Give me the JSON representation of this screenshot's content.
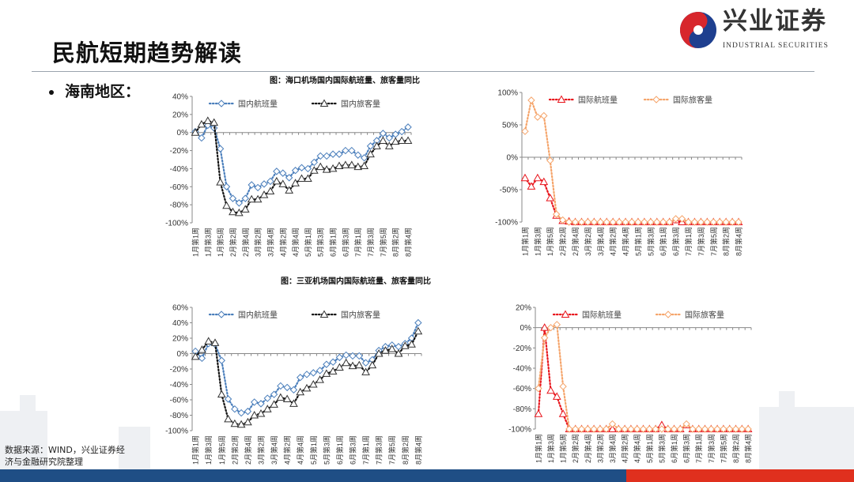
{
  "page": {
    "title": "民航短期趋势解读",
    "bullet": "海南地区：",
    "chart_title_1": "图：海口机场国内国际航班量、旅客量同比",
    "chart_title_2": "图：三亚机场国内国际航班量、旅客量同比",
    "source": "数据来源：WIND，兴业证券经济与金融研究院整理"
  },
  "logo": {
    "cn": "兴业证券",
    "en": "INDUSTRIAL SECURITIES"
  },
  "colors": {
    "blue": "#4a7ebb",
    "black": "#111111",
    "red": "#e8141b",
    "orange": "#f5a46a",
    "bar_blue": "#1f4e85",
    "bar_red": "#e0301e"
  },
  "chart_data": [
    {
      "type": "line",
      "title": "海口机场国内航班量、旅客量同比",
      "categories": [
        "1月第1周",
        "1月第2周",
        "1月第3周",
        "1月第4周",
        "1月第5周",
        "2月第1周",
        "2月第2周",
        "2月第3周",
        "2月第4周",
        "3月第1周",
        "3月第2周",
        "3月第3周",
        "3月第4周",
        "4月第1周",
        "4月第2周",
        "4月第3周",
        "4月第4周",
        "4月第5周",
        "5月第1周",
        "5月第2周",
        "5月第3周",
        "5月第4周",
        "6月第1周",
        "6月第2周",
        "6月第3周",
        "6月第4周",
        "7月第1周",
        "7月第2周",
        "7月第3周",
        "7月第4周",
        "7月第5周",
        "8月第1周",
        "8月第2周",
        "8月第3周",
        "8月第4周"
      ],
      "ylim": [
        -100,
        40
      ],
      "yticks": [
        -100,
        -80,
        -60,
        -40,
        -20,
        0,
        20,
        40
      ],
      "yunit": "%",
      "legend": "top",
      "series": [
        {
          "name": "国内航班量",
          "color": "#4a7ebb",
          "marker": "diamond",
          "values": [
            1,
            -6,
            8,
            5,
            -18,
            -60,
            -73,
            -78,
            -73,
            -58,
            -61,
            -57,
            -54,
            -43,
            -45,
            -50,
            -42,
            -39,
            -40,
            -33,
            -26,
            -26,
            -24,
            -24,
            -20,
            -20,
            -25,
            -28,
            -15,
            -9,
            -1,
            -6,
            -2,
            1,
            6
          ]
        },
        {
          "name": "国内旅客量",
          "color": "#111111",
          "marker": "triangle",
          "values": [
            0,
            9,
            13,
            11,
            -55,
            -81,
            -88,
            -89,
            -85,
            -74,
            -74,
            -69,
            -65,
            -54,
            -57,
            -64,
            -56,
            -51,
            -51,
            -42,
            -38,
            -41,
            -40,
            -37,
            -36,
            -36,
            -38,
            -37,
            -24,
            -15,
            -9,
            -15,
            -10,
            -9,
            -9
          ]
        }
      ]
    },
    {
      "type": "line",
      "title": "海口机场国际航班量、旅客量同比",
      "categories": [
        "1月第1周",
        "1月第2周",
        "1月第3周",
        "1月第4周",
        "1月第5周",
        "2月第1周",
        "2月第2周",
        "2月第3周",
        "2月第4周",
        "3月第1周",
        "3月第2周",
        "3月第3周",
        "3月第4周",
        "4月第1周",
        "4月第2周",
        "4月第3周",
        "4月第4周",
        "4月第5周",
        "5月第1周",
        "5月第2周",
        "5月第3周",
        "5月第4周",
        "6月第1周",
        "6月第2周",
        "6月第3周",
        "6月第4周",
        "7月第1周",
        "7月第2周",
        "7月第3周",
        "7月第4周",
        "7月第5周",
        "8月第1周",
        "8月第2周",
        "8月第3周",
        "8月第4周"
      ],
      "ylim": [
        -100,
        100
      ],
      "yticks": [
        -100,
        -50,
        0,
        50,
        100
      ],
      "yunit": "%",
      "legend": "top",
      "series": [
        {
          "name": "国际航班量",
          "color": "#e8141b",
          "marker": "triangle",
          "values": [
            -32,
            -45,
            -32,
            -38,
            -63,
            -90,
            -98,
            -99,
            -100,
            -100,
            -100,
            -100,
            -100,
            -100,
            -100,
            -100,
            -100,
            -100,
            -100,
            -100,
            -100,
            -100,
            -100,
            -100,
            -97,
            -100,
            -100,
            -100,
            -100,
            -100,
            -100,
            -100,
            -100,
            -100,
            -100
          ]
        },
        {
          "name": "国际旅客量",
          "color": "#f5a46a",
          "marker": "diamond",
          "values": [
            40,
            88,
            62,
            64,
            -5,
            -88,
            -97,
            -100,
            -100,
            -100,
            -100,
            -100,
            -100,
            -100,
            -100,
            -100,
            -100,
            -100,
            -100,
            -100,
            -100,
            -100,
            -100,
            -100,
            -95,
            -95,
            -100,
            -100,
            -100,
            -100,
            -100,
            -100,
            -100,
            -100,
            -100
          ]
        }
      ]
    },
    {
      "type": "line",
      "title": "三亚机场国内航班量、旅客量同比",
      "categories": [
        "1月第1周",
        "1月第2周",
        "1月第3周",
        "1月第4周",
        "1月第5周",
        "2月第1周",
        "2月第2周",
        "2月第3周",
        "2月第4周",
        "3月第1周",
        "3月第2周",
        "3月第3周",
        "3月第4周",
        "4月第1周",
        "4月第2周",
        "4月第3周",
        "4月第4周",
        "4月第5周",
        "5月第1周",
        "5月第2周",
        "5月第3周",
        "5月第4周",
        "6月第1周",
        "6月第2周",
        "6月第3周",
        "6月第4周",
        "7月第1周",
        "7月第2周",
        "7月第3周",
        "7月第4周",
        "7月第5周",
        "8月第1周",
        "8月第2周",
        "8月第3周",
        "8月第4周"
      ],
      "ylim": [
        -100,
        60
      ],
      "yticks": [
        -100,
        -80,
        -60,
        -40,
        -20,
        0,
        20,
        40,
        60
      ],
      "yunit": "%",
      "legend": "top",
      "series": [
        {
          "name": "国内航班量",
          "color": "#4a7ebb",
          "marker": "diamond",
          "values": [
            3,
            -6,
            13,
            12,
            -9,
            -59,
            -72,
            -77,
            -75,
            -63,
            -65,
            -58,
            -53,
            -42,
            -44,
            -47,
            -31,
            -27,
            -25,
            -22,
            -14,
            -11,
            -5,
            -2,
            -3,
            -3,
            -12,
            -8,
            4,
            9,
            11,
            9,
            13,
            20,
            40
          ]
        },
        {
          "name": "国内旅客量",
          "color": "#111111",
          "marker": "triangle",
          "values": [
            -4,
            5,
            16,
            14,
            -53,
            -85,
            -91,
            -92,
            -89,
            -80,
            -78,
            -72,
            -66,
            -57,
            -59,
            -65,
            -50,
            -45,
            -40,
            -34,
            -26,
            -23,
            -18,
            -12,
            -16,
            -15,
            -24,
            -15,
            0,
            4,
            6,
            0,
            10,
            12,
            29
          ]
        }
      ]
    },
    {
      "type": "line",
      "title": "三亚机场国际航班量、旅客量同比",
      "categories": [
        "1月第1周",
        "1月第2周",
        "1月第3周",
        "1月第4周",
        "1月第5周",
        "2月第1周",
        "2月第2周",
        "2月第3周",
        "2月第4周",
        "3月第1周",
        "3月第2周",
        "3月第3周",
        "3月第4周",
        "4月第1周",
        "4月第2周",
        "4月第3周",
        "4月第4周",
        "4月第5周",
        "5月第1周",
        "5月第2周",
        "5月第3周",
        "5月第4周",
        "6月第1周",
        "6月第2周",
        "6月第3周",
        "6月第4周",
        "7月第1周",
        "7月第2周",
        "7月第3周",
        "7月第4周",
        "7月第5周",
        "8月第1周",
        "8月第2周",
        "8月第3周",
        "8月第4周"
      ],
      "ylim": [
        -100,
        20
      ],
      "yticks": [
        -100,
        -80,
        -60,
        -40,
        -20,
        0,
        20
      ],
      "yunit": "%",
      "legend": "top",
      "series": [
        {
          "name": "国际航班量",
          "color": "#e8141b",
          "marker": "triangle",
          "values": [
            -85,
            0,
            -62,
            -68,
            -85,
            -100,
            -100,
            -100,
            -100,
            -100,
            -100,
            -100,
            -100,
            -100,
            -100,
            -100,
            -100,
            -100,
            -100,
            -100,
            -96,
            -100,
            -100,
            -100,
            -96,
            -100,
            -100,
            -100,
            -100,
            -100,
            -100,
            -100,
            -100,
            -100,
            -100
          ]
        },
        {
          "name": "国际旅客量",
          "color": "#f5a46a",
          "marker": "diamond",
          "values": [
            -60,
            -10,
            0,
            3,
            -58,
            -100,
            -100,
            -100,
            -100,
            -100,
            -100,
            -100,
            -95,
            -100,
            -100,
            -100,
            -100,
            -100,
            -100,
            -100,
            -100,
            -100,
            -100,
            -100,
            -95,
            -100,
            -100,
            -100,
            -100,
            -100,
            -100,
            -100,
            -100,
            -100,
            -100
          ]
        }
      ]
    }
  ]
}
